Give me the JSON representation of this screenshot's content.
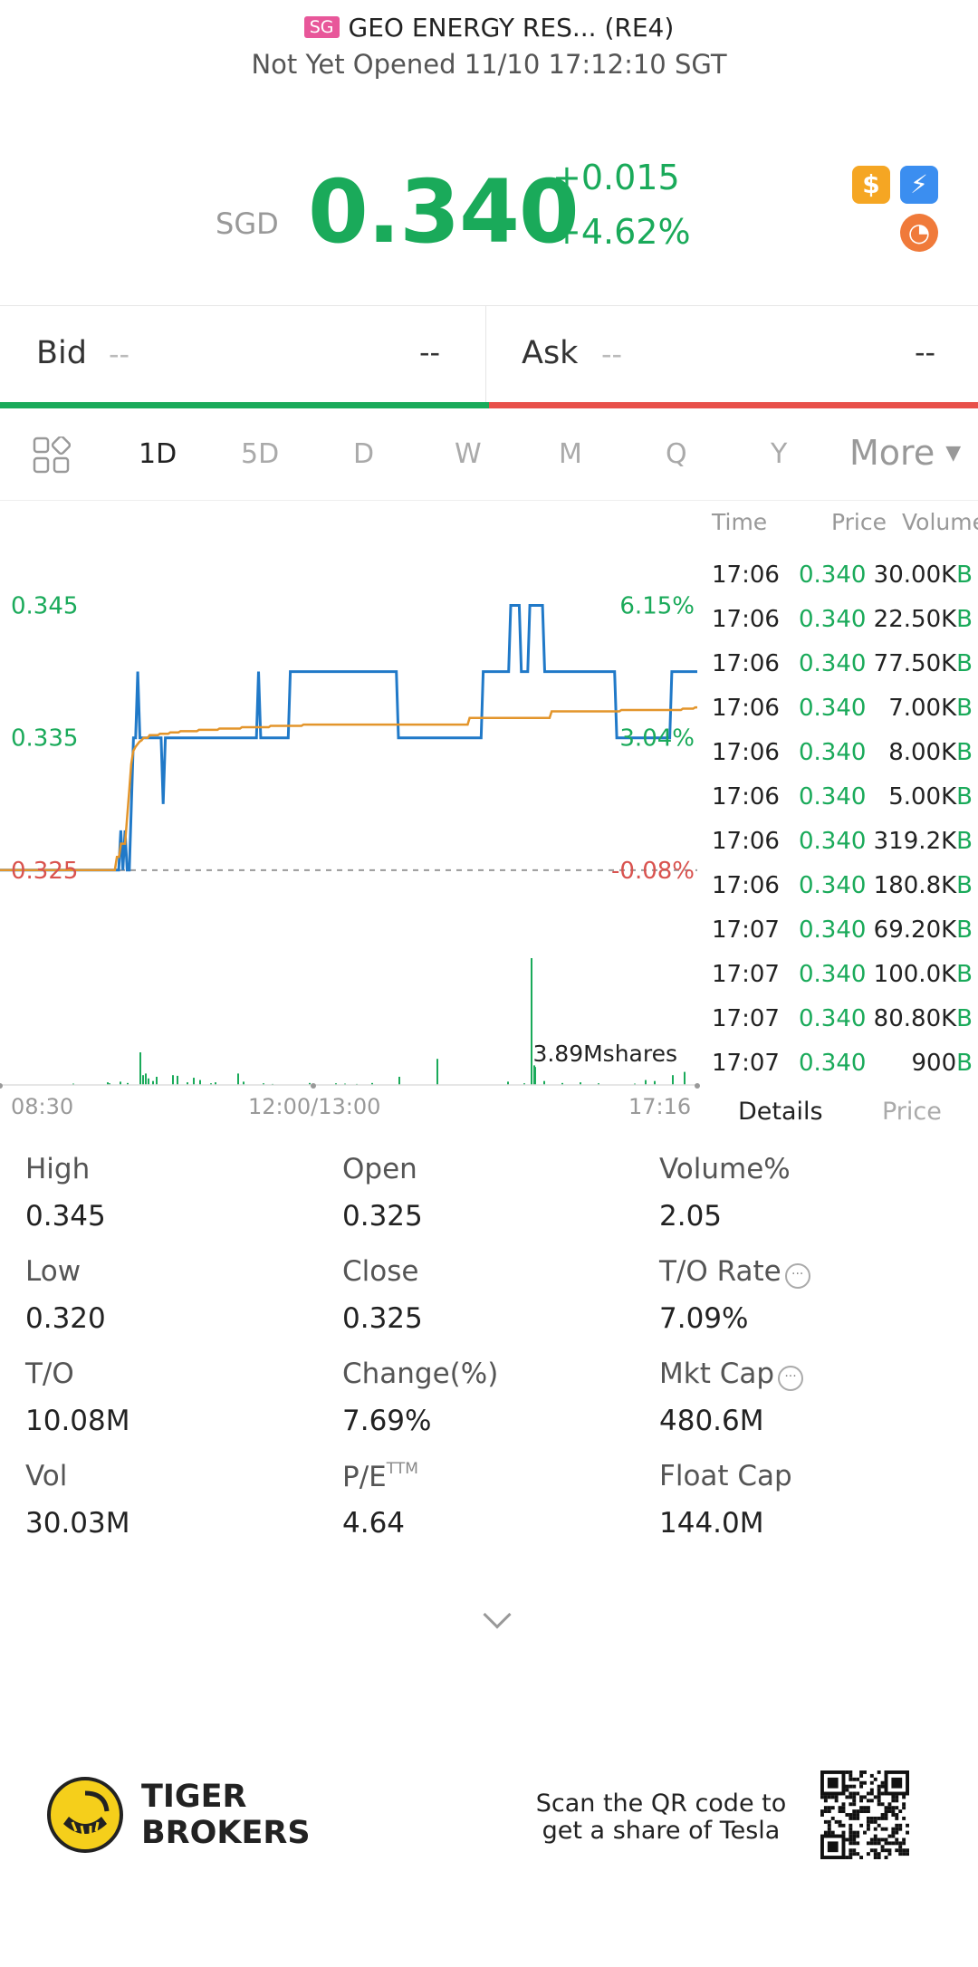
{
  "header": {
    "market_badge": "SG",
    "title": "GEO ENERGY RES... (RE4)",
    "status": "Not Yet Opened 11/10 17:12:10 SGT"
  },
  "quote": {
    "currency": "SGD",
    "price": "0.340",
    "change": "+0.015",
    "change_pct": "+4.62%",
    "badges": [
      {
        "icon": "dollar-icon",
        "glyph": "$",
        "color": "#f5a623"
      },
      {
        "icon": "lightning-icon",
        "glyph": "⚡",
        "color": "#3b8ef0"
      },
      {
        "icon": "gauge-icon",
        "glyph": "◔",
        "color": "#f07a3a"
      }
    ]
  },
  "bidask": {
    "bid_label": "Bid",
    "bid_price": "--",
    "bid_size": "--",
    "ask_label": "Ask",
    "ask_price": "--",
    "ask_size": "--"
  },
  "tabs": [
    "1D",
    "5D",
    "D",
    "W",
    "M",
    "Q",
    "Y"
  ],
  "active_tab": "1D",
  "more_label": "More",
  "chart_data": {
    "type": "line",
    "price_axis": [
      "0.345",
      "0.335",
      "0.325"
    ],
    "pct_axis": [
      "6.15%",
      "3.04%",
      "-0.08%"
    ],
    "ylim": [
      0.3215,
      0.3475
    ],
    "prev_close": 0.325,
    "x_labels": [
      "08:30",
      "12:00/13:00",
      "17:16"
    ],
    "volume_label": "3.89Mshares",
    "series": [
      {
        "color": "#2079c8",
        "values": [
          0.325,
          0.325,
          0.325,
          0.325,
          0.325,
          0.325,
          0.325,
          0.325,
          0.325,
          0.325,
          0.325,
          0.325,
          0.325,
          0.325,
          0.325,
          0.325,
          0.325,
          0.325,
          0.325,
          0.325,
          0.325,
          0.325,
          0.325,
          0.325,
          0.325,
          0.325,
          0.325,
          0.325,
          0.325,
          0.325,
          0.325,
          0.325,
          0.325,
          0.325,
          0.325,
          0.325,
          0.325,
          0.325,
          0.325,
          0.325,
          0.325,
          0.325,
          0.325,
          0.325,
          0.325,
          0.325,
          0.325,
          0.325,
          0.325,
          0.325,
          0.325,
          0.325,
          0.325,
          0.325,
          0.325,
          0.325,
          0.325,
          0.328,
          0.325,
          0.328,
          0.325,
          0.325,
          0.33,
          0.335,
          0.335,
          0.34,
          0.335,
          0.335,
          0.335,
          0.335,
          0.335,
          0.335,
          0.335,
          0.335,
          0.335,
          0.335,
          0.335,
          0.33,
          0.335,
          0.335,
          0.335,
          0.335,
          0.335,
          0.335,
          0.335,
          0.335,
          0.335,
          0.335,
          0.335,
          0.335,
          0.335,
          0.335,
          0.335,
          0.335,
          0.335,
          0.335,
          0.335,
          0.335,
          0.335,
          0.335,
          0.335,
          0.335,
          0.335,
          0.335,
          0.335,
          0.335,
          0.335,
          0.335,
          0.335,
          0.335,
          0.335,
          0.335,
          0.335,
          0.335,
          0.335,
          0.335,
          0.335,
          0.335,
          0.335,
          0.335,
          0.335,
          0.335,
          0.34,
          0.335,
          0.335,
          0.335,
          0.335,
          0.335,
          0.335,
          0.335,
          0.335,
          0.335,
          0.335,
          0.335,
          0.335,
          0.335,
          0.335,
          0.34,
          0.34,
          0.34,
          0.34,
          0.34,
          0.34,
          0.34,
          0.34,
          0.34,
          0.34,
          0.34,
          0.34,
          0.34,
          0.34,
          0.34,
          0.34,
          0.34,
          0.34,
          0.34,
          0.34,
          0.34,
          0.34,
          0.34,
          0.34,
          0.34,
          0.34,
          0.34,
          0.34,
          0.34,
          0.34,
          0.34,
          0.34,
          0.34,
          0.34,
          0.34,
          0.34,
          0.34,
          0.34,
          0.34,
          0.34,
          0.34,
          0.34,
          0.34,
          0.34,
          0.34,
          0.34,
          0.34,
          0.34,
          0.34,
          0.34,
          0.34,
          0.335,
          0.335,
          0.335,
          0.335,
          0.335,
          0.335,
          0.335,
          0.335,
          0.335,
          0.335,
          0.335,
          0.335,
          0.335,
          0.335,
          0.335,
          0.335,
          0.335,
          0.335,
          0.335,
          0.335,
          0.335,
          0.335,
          0.335,
          0.335,
          0.335,
          0.335,
          0.335,
          0.335,
          0.335,
          0.335,
          0.335,
          0.335,
          0.335,
          0.335,
          0.335,
          0.335,
          0.335,
          0.335,
          0.335,
          0.335,
          0.34,
          0.34,
          0.34,
          0.34,
          0.34,
          0.34,
          0.34,
          0.34,
          0.34,
          0.34,
          0.34,
          0.34,
          0.34,
          0.345,
          0.345,
          0.345,
          0.345,
          0.345,
          0.34,
          0.34,
          0.34,
          0.34,
          0.345,
          0.345,
          0.345,
          0.345,
          0.345,
          0.345,
          0.345,
          0.34,
          0.34,
          0.34,
          0.34,
          0.34,
          0.34,
          0.34,
          0.34,
          0.34,
          0.34,
          0.34,
          0.34,
          0.34,
          0.34,
          0.34,
          0.34,
          0.34,
          0.34,
          0.34,
          0.34,
          0.34,
          0.34,
          0.34,
          0.34,
          0.34,
          0.34,
          0.34,
          0.34,
          0.34,
          0.34,
          0.34,
          0.34,
          0.34,
          0.34,
          0.335,
          0.335,
          0.335,
          0.335,
          0.335,
          0.335,
          0.335,
          0.335,
          0.335,
          0.335,
          0.335,
          0.335,
          0.335,
          0.335,
          0.335,
          0.335,
          0.335,
          0.335,
          0.335,
          0.335,
          0.335,
          0.335,
          0.335,
          0.335,
          0.335,
          0.335,
          0.34,
          0.34,
          0.34,
          0.34,
          0.34,
          0.34,
          0.34,
          0.34,
          0.34,
          0.34,
          0.34,
          0.34,
          0.34
        ]
      },
      {
        "color": "#e3952b",
        "values": [
          0.325,
          0.325,
          0.325,
          0.325,
          0.325,
          0.325,
          0.325,
          0.325,
          0.325,
          0.325,
          0.325,
          0.325,
          0.325,
          0.325,
          0.325,
          0.325,
          0.325,
          0.325,
          0.325,
          0.325,
          0.325,
          0.325,
          0.325,
          0.325,
          0.325,
          0.325,
          0.325,
          0.325,
          0.325,
          0.325,
          0.325,
          0.325,
          0.325,
          0.325,
          0.325,
          0.325,
          0.325,
          0.325,
          0.325,
          0.325,
          0.325,
          0.325,
          0.325,
          0.325,
          0.325,
          0.325,
          0.325,
          0.325,
          0.325,
          0.325,
          0.325,
          0.325,
          0.325,
          0.325,
          0.325,
          0.325,
          0.325,
          0.326,
          0.326,
          0.327,
          0.327,
          0.327,
          0.329,
          0.331,
          0.333,
          0.334,
          0.3343,
          0.3345,
          0.3347,
          0.3348,
          0.335,
          0.335,
          0.335,
          0.3352,
          0.3352,
          0.3352,
          0.3352,
          0.3352,
          0.3353,
          0.3353,
          0.3353,
          0.3353,
          0.3353,
          0.3354,
          0.3354,
          0.3354,
          0.3354,
          0.3354,
          0.3355,
          0.3355,
          0.3355,
          0.3355,
          0.3355,
          0.3355,
          0.3355,
          0.3355,
          0.3355,
          0.3356,
          0.3356,
          0.3356,
          0.3356,
          0.3356,
          0.3356,
          0.3356,
          0.3356,
          0.3356,
          0.3356,
          0.3357,
          0.3357,
          0.3357,
          0.3357,
          0.3357,
          0.3357,
          0.3357,
          0.3357,
          0.3357,
          0.3357,
          0.3357,
          0.3358,
          0.3358,
          0.3358,
          0.3358,
          0.3358,
          0.3358,
          0.3358,
          0.3358,
          0.3358,
          0.3358,
          0.3358,
          0.3358,
          0.3358,
          0.3358,
          0.3359,
          0.3359,
          0.3359,
          0.3359,
          0.3359,
          0.3359,
          0.3359,
          0.3359,
          0.3359,
          0.3359,
          0.3359,
          0.3359,
          0.3359,
          0.3359,
          0.3359,
          0.3359,
          0.336,
          0.336,
          0.336,
          0.336,
          0.336,
          0.336,
          0.336,
          0.336,
          0.336,
          0.336,
          0.336,
          0.336,
          0.336,
          0.336,
          0.336,
          0.336,
          0.336,
          0.336,
          0.336,
          0.336,
          0.336,
          0.336,
          0.336,
          0.336,
          0.336,
          0.336,
          0.336,
          0.336,
          0.336,
          0.336,
          0.336,
          0.336,
          0.336,
          0.336,
          0.336,
          0.336,
          0.336,
          0.336,
          0.336,
          0.336,
          0.336,
          0.336,
          0.336,
          0.336,
          0.336,
          0.336,
          0.336,
          0.336,
          0.336,
          0.336,
          0.336,
          0.336,
          0.336,
          0.336,
          0.336,
          0.336,
          0.336,
          0.336,
          0.336,
          0.336,
          0.336,
          0.336,
          0.336,
          0.336,
          0.336,
          0.336,
          0.336,
          0.336,
          0.336,
          0.336,
          0.336,
          0.336,
          0.336,
          0.336,
          0.336,
          0.336,
          0.336,
          0.336,
          0.336,
          0.336,
          0.336,
          0.3365,
          0.3365,
          0.3365,
          0.3365,
          0.3365,
          0.3365,
          0.3365,
          0.3365,
          0.3365,
          0.3365,
          0.3365,
          0.3365,
          0.3365,
          0.3365,
          0.3365,
          0.3365,
          0.3365,
          0.3365,
          0.3365,
          0.3365,
          0.3365,
          0.3365,
          0.3365,
          0.3365,
          0.3365,
          0.3365,
          0.3365,
          0.3365,
          0.3365,
          0.3365,
          0.3365,
          0.3365,
          0.3365,
          0.3365,
          0.3365,
          0.3365,
          0.3365,
          0.3365,
          0.3365,
          0.3365,
          0.337,
          0.337,
          0.337,
          0.337,
          0.337,
          0.337,
          0.337,
          0.337,
          0.337,
          0.337,
          0.337,
          0.337,
          0.337,
          0.337,
          0.337,
          0.337,
          0.337,
          0.337,
          0.337,
          0.337,
          0.337,
          0.337,
          0.337,
          0.337,
          0.337,
          0.337,
          0.337,
          0.337,
          0.337,
          0.337,
          0.337,
          0.337,
          0.337,
          0.337,
          0.3371,
          0.3371,
          0.3371,
          0.3371,
          0.3371,
          0.3371,
          0.3371,
          0.3371,
          0.3371,
          0.3371,
          0.3371,
          0.3371,
          0.3371,
          0.3371,
          0.3371,
          0.3371,
          0.3371,
          0.3371,
          0.3371,
          0.3371,
          0.3371,
          0.3371,
          0.3371,
          0.3371,
          0.3371,
          0.3371,
          0.3371,
          0.3371,
          0.3371,
          0.3371,
          0.3372,
          0.3372,
          0.3372,
          0.3372,
          0.3372,
          0.3372,
          0.3373,
          0.3373
        ]
      }
    ],
    "volume_max": 3.89,
    "volume_bars": [
      [
        80,
        0.04
      ],
      [
        118,
        0.08
      ],
      [
        120,
        0.05
      ],
      [
        132,
        0.1
      ],
      [
        140,
        0.06
      ],
      [
        154,
        1.0
      ],
      [
        157,
        0.3
      ],
      [
        160,
        0.35
      ],
      [
        163,
        0.2
      ],
      [
        168,
        0.12
      ],
      [
        172,
        0.25
      ],
      [
        190,
        0.3
      ],
      [
        195,
        0.28
      ],
      [
        206,
        0.08
      ],
      [
        213,
        0.22
      ],
      [
        220,
        0.15
      ],
      [
        232,
        0.05
      ],
      [
        237,
        0.08
      ],
      [
        262,
        0.35
      ],
      [
        268,
        0.1
      ],
      [
        290,
        0.05
      ],
      [
        300,
        0.03
      ],
      [
        341,
        0.06
      ],
      [
        370,
        0.05
      ],
      [
        380,
        0.04
      ],
      [
        393,
        0.03
      ],
      [
        410,
        0.06
      ],
      [
        440,
        0.25
      ],
      [
        482,
        0.8
      ],
      [
        560,
        0.1
      ],
      [
        578,
        0.05
      ],
      [
        586,
        3.89
      ],
      [
        589,
        0.6
      ],
      [
        590,
        0.55
      ],
      [
        600,
        0.12
      ],
      [
        620,
        0.06
      ],
      [
        640,
        0.08
      ],
      [
        660,
        0.05
      ],
      [
        700,
        0.04
      ],
      [
        712,
        0.15
      ],
      [
        722,
        0.12
      ],
      [
        742,
        0.3
      ],
      [
        755,
        0.4
      ]
    ]
  },
  "tick_header": {
    "time": "Time",
    "price": "Price",
    "volume": "Volume"
  },
  "ticks": [
    {
      "time": "17:06",
      "price": "0.340",
      "vol": "30.00K",
      "flag": "B"
    },
    {
      "time": "17:06",
      "price": "0.340",
      "vol": "22.50K",
      "flag": "B"
    },
    {
      "time": "17:06",
      "price": "0.340",
      "vol": "77.50K",
      "flag": "B"
    },
    {
      "time": "17:06",
      "price": "0.340",
      "vol": "7.00K",
      "flag": "B"
    },
    {
      "time": "17:06",
      "price": "0.340",
      "vol": "8.00K",
      "flag": "B"
    },
    {
      "time": "17:06",
      "price": "0.340",
      "vol": "5.00K",
      "flag": "B"
    },
    {
      "time": "17:06",
      "price": "0.340",
      "vol": "319.2K",
      "flag": "B"
    },
    {
      "time": "17:06",
      "price": "0.340",
      "vol": "180.8K",
      "flag": "B"
    },
    {
      "time": "17:07",
      "price": "0.340",
      "vol": "69.20K",
      "flag": "B"
    },
    {
      "time": "17:07",
      "price": "0.340",
      "vol": "100.0K",
      "flag": "B"
    },
    {
      "time": "17:07",
      "price": "0.340",
      "vol": "80.80K",
      "flag": "B"
    },
    {
      "time": "17:07",
      "price": "0.340",
      "vol": "900",
      "flag": "B"
    }
  ],
  "detail_tabs": {
    "details": "Details",
    "price": "Price"
  },
  "stats": [
    {
      "label": "High",
      "value": "0.345"
    },
    {
      "label": "Open",
      "value": "0.325"
    },
    {
      "label": "Volume%",
      "value": "2.05"
    },
    {
      "label": "Low",
      "value": "0.320"
    },
    {
      "label": "Close",
      "value": "0.325"
    },
    {
      "label": "T/O Rate",
      "value": "7.09%",
      "info": true
    },
    {
      "label": "T/O",
      "value": "10.08M"
    },
    {
      "label": "Change(%)",
      "value": "7.69%"
    },
    {
      "label": "Mkt Cap",
      "value": "480.6M",
      "info": true
    },
    {
      "label": "Vol",
      "value": "30.03M"
    },
    {
      "label": "P/E",
      "value": "4.64",
      "sup": "TTM"
    },
    {
      "label": "Float Cap",
      "value": "144.0M"
    }
  ],
  "footer": {
    "brand_line1": "TIGER",
    "brand_line2": "BROKERS",
    "scan_line1": "Scan the QR code to",
    "scan_line2": "get a share of Tesla"
  }
}
